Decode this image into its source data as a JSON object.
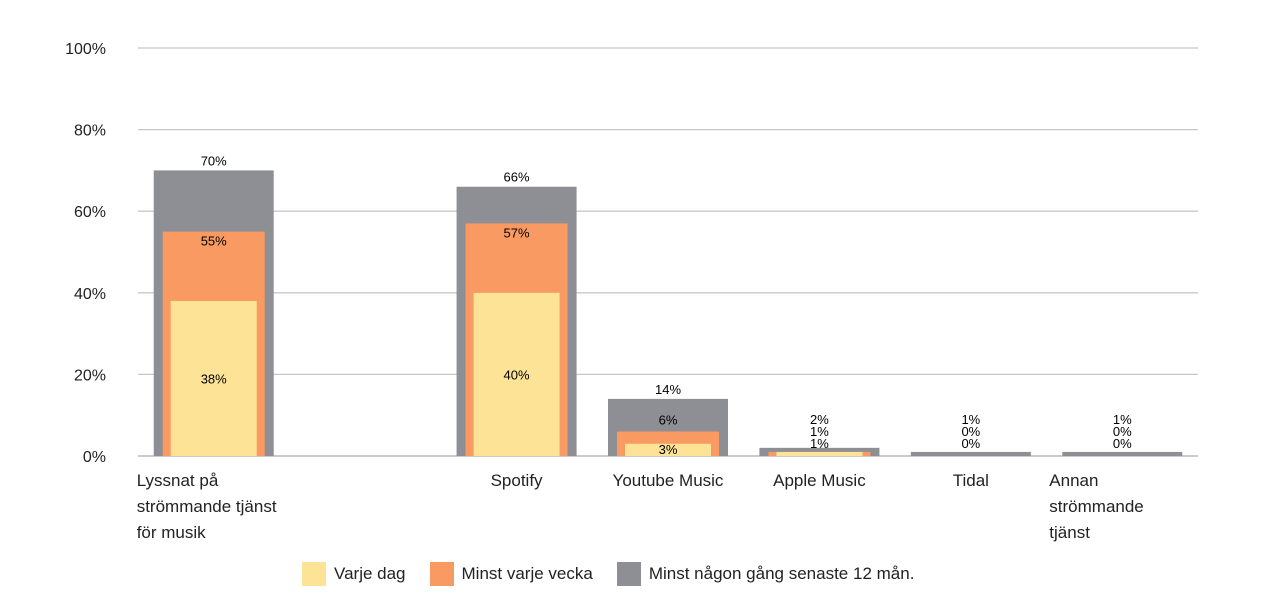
{
  "chart_data": {
    "type": "bar",
    "title": "",
    "xlabel": "",
    "ylabel": "",
    "ylim": [
      0,
      100
    ],
    "yticks": [
      "0%",
      "20%",
      "40%",
      "60%",
      "80%",
      "100%"
    ],
    "grid": true,
    "legend_position": "bottom",
    "categories": [
      [
        "Lyssnat på",
        "strömmande tjänst",
        "för musik"
      ],
      [
        "Spotify"
      ],
      [
        "Youtube Music"
      ],
      [
        "Apple Music"
      ],
      [
        "Tidal"
      ],
      [
        "Annan",
        "strömmande",
        "tjänst"
      ]
    ],
    "series": [
      {
        "name": "Minst någon gång senaste 12 mån.",
        "color": "#8e8f94",
        "values": [
          70,
          66,
          14,
          2,
          1,
          1
        ]
      },
      {
        "name": "Minst varje vecka",
        "color": "#f89a62",
        "values": [
          55,
          57,
          6,
          1,
          0,
          0
        ]
      },
      {
        "name": "Varje dag",
        "color": "#fde396",
        "values": [
          38,
          40,
          3,
          1,
          0,
          0
        ]
      }
    ],
    "legend_order": [
      "Varje dag",
      "Minst varje vecka",
      "Minst någon gång senaste 12 mån."
    ]
  }
}
